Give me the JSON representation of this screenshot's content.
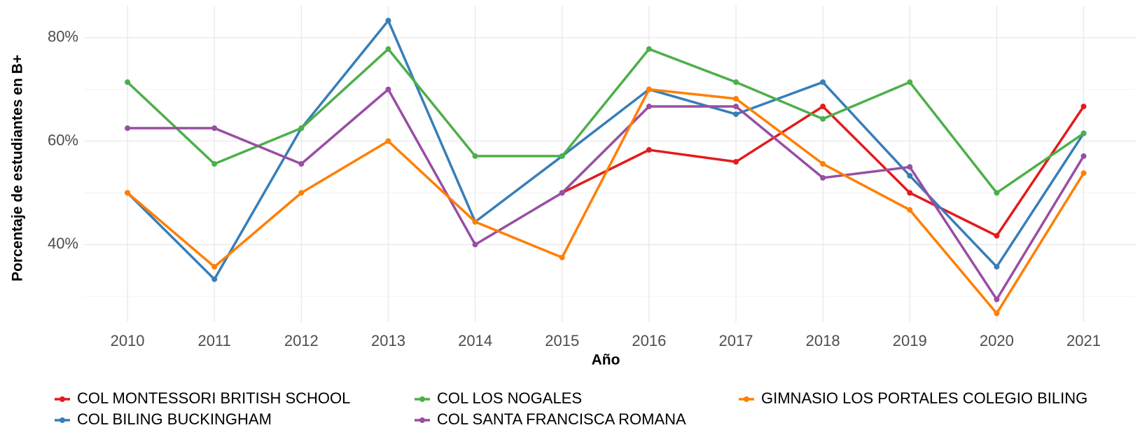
{
  "chart_data": {
    "type": "line",
    "x_label": "Año",
    "y_label": "Porcentaje de estudiantes en B+",
    "x": [
      2010,
      2011,
      2012,
      2013,
      2014,
      2015,
      2016,
      2017,
      2018,
      2019,
      2020,
      2021
    ],
    "xlim": [
      2009.5,
      2021.6
    ],
    "xticks": [
      2010,
      2011,
      2012,
      2013,
      2014,
      2015,
      2016,
      2017,
      2018,
      2019,
      2020,
      2021
    ],
    "ylim": [
      25,
      86.2
    ],
    "yticks": [
      {
        "value": 40,
        "label": "40%"
      },
      {
        "value": 60,
        "label": "60%"
      },
      {
        "value": 80,
        "label": "80%"
      }
    ],
    "grid": true,
    "legend_position": "bottom",
    "series": [
      {
        "name": "COL  MONTESSORI BRITISH SCHOOL",
        "color": "#e41a1c",
        "values": [
          null,
          null,
          null,
          null,
          null,
          50,
          58.3,
          56,
          66.7,
          50,
          41.7,
          66.7
        ]
      },
      {
        "name": "COL BILING BUCKINGHAM",
        "color": "#377eb8",
        "values": [
          50,
          33.3,
          62.5,
          83.3,
          44.4,
          57.1,
          70,
          65.2,
          71.4,
          53.3,
          35.7,
          61.5
        ]
      },
      {
        "name": "COL LOS NOGALES",
        "color": "#4daf4a",
        "values": [
          71.4,
          55.6,
          62.5,
          77.8,
          57.1,
          57.1,
          77.8,
          71.4,
          64.3,
          71.4,
          50,
          61.5
        ]
      },
      {
        "name": "COL SANTA FRANCISCA ROMANA",
        "color": "#984ea3",
        "values": [
          62.5,
          62.5,
          55.6,
          70,
          40,
          50,
          66.7,
          66.7,
          52.9,
          55,
          29.4,
          57.1
        ]
      },
      {
        "name": "GIMNASIO LOS PORTALES COLEGIO BILING",
        "color": "#ff7f00",
        "values": [
          50,
          35.7,
          50,
          60,
          44.4,
          37.5,
          70,
          68.2,
          55.6,
          46.7,
          26.7,
          53.8
        ]
      }
    ]
  }
}
